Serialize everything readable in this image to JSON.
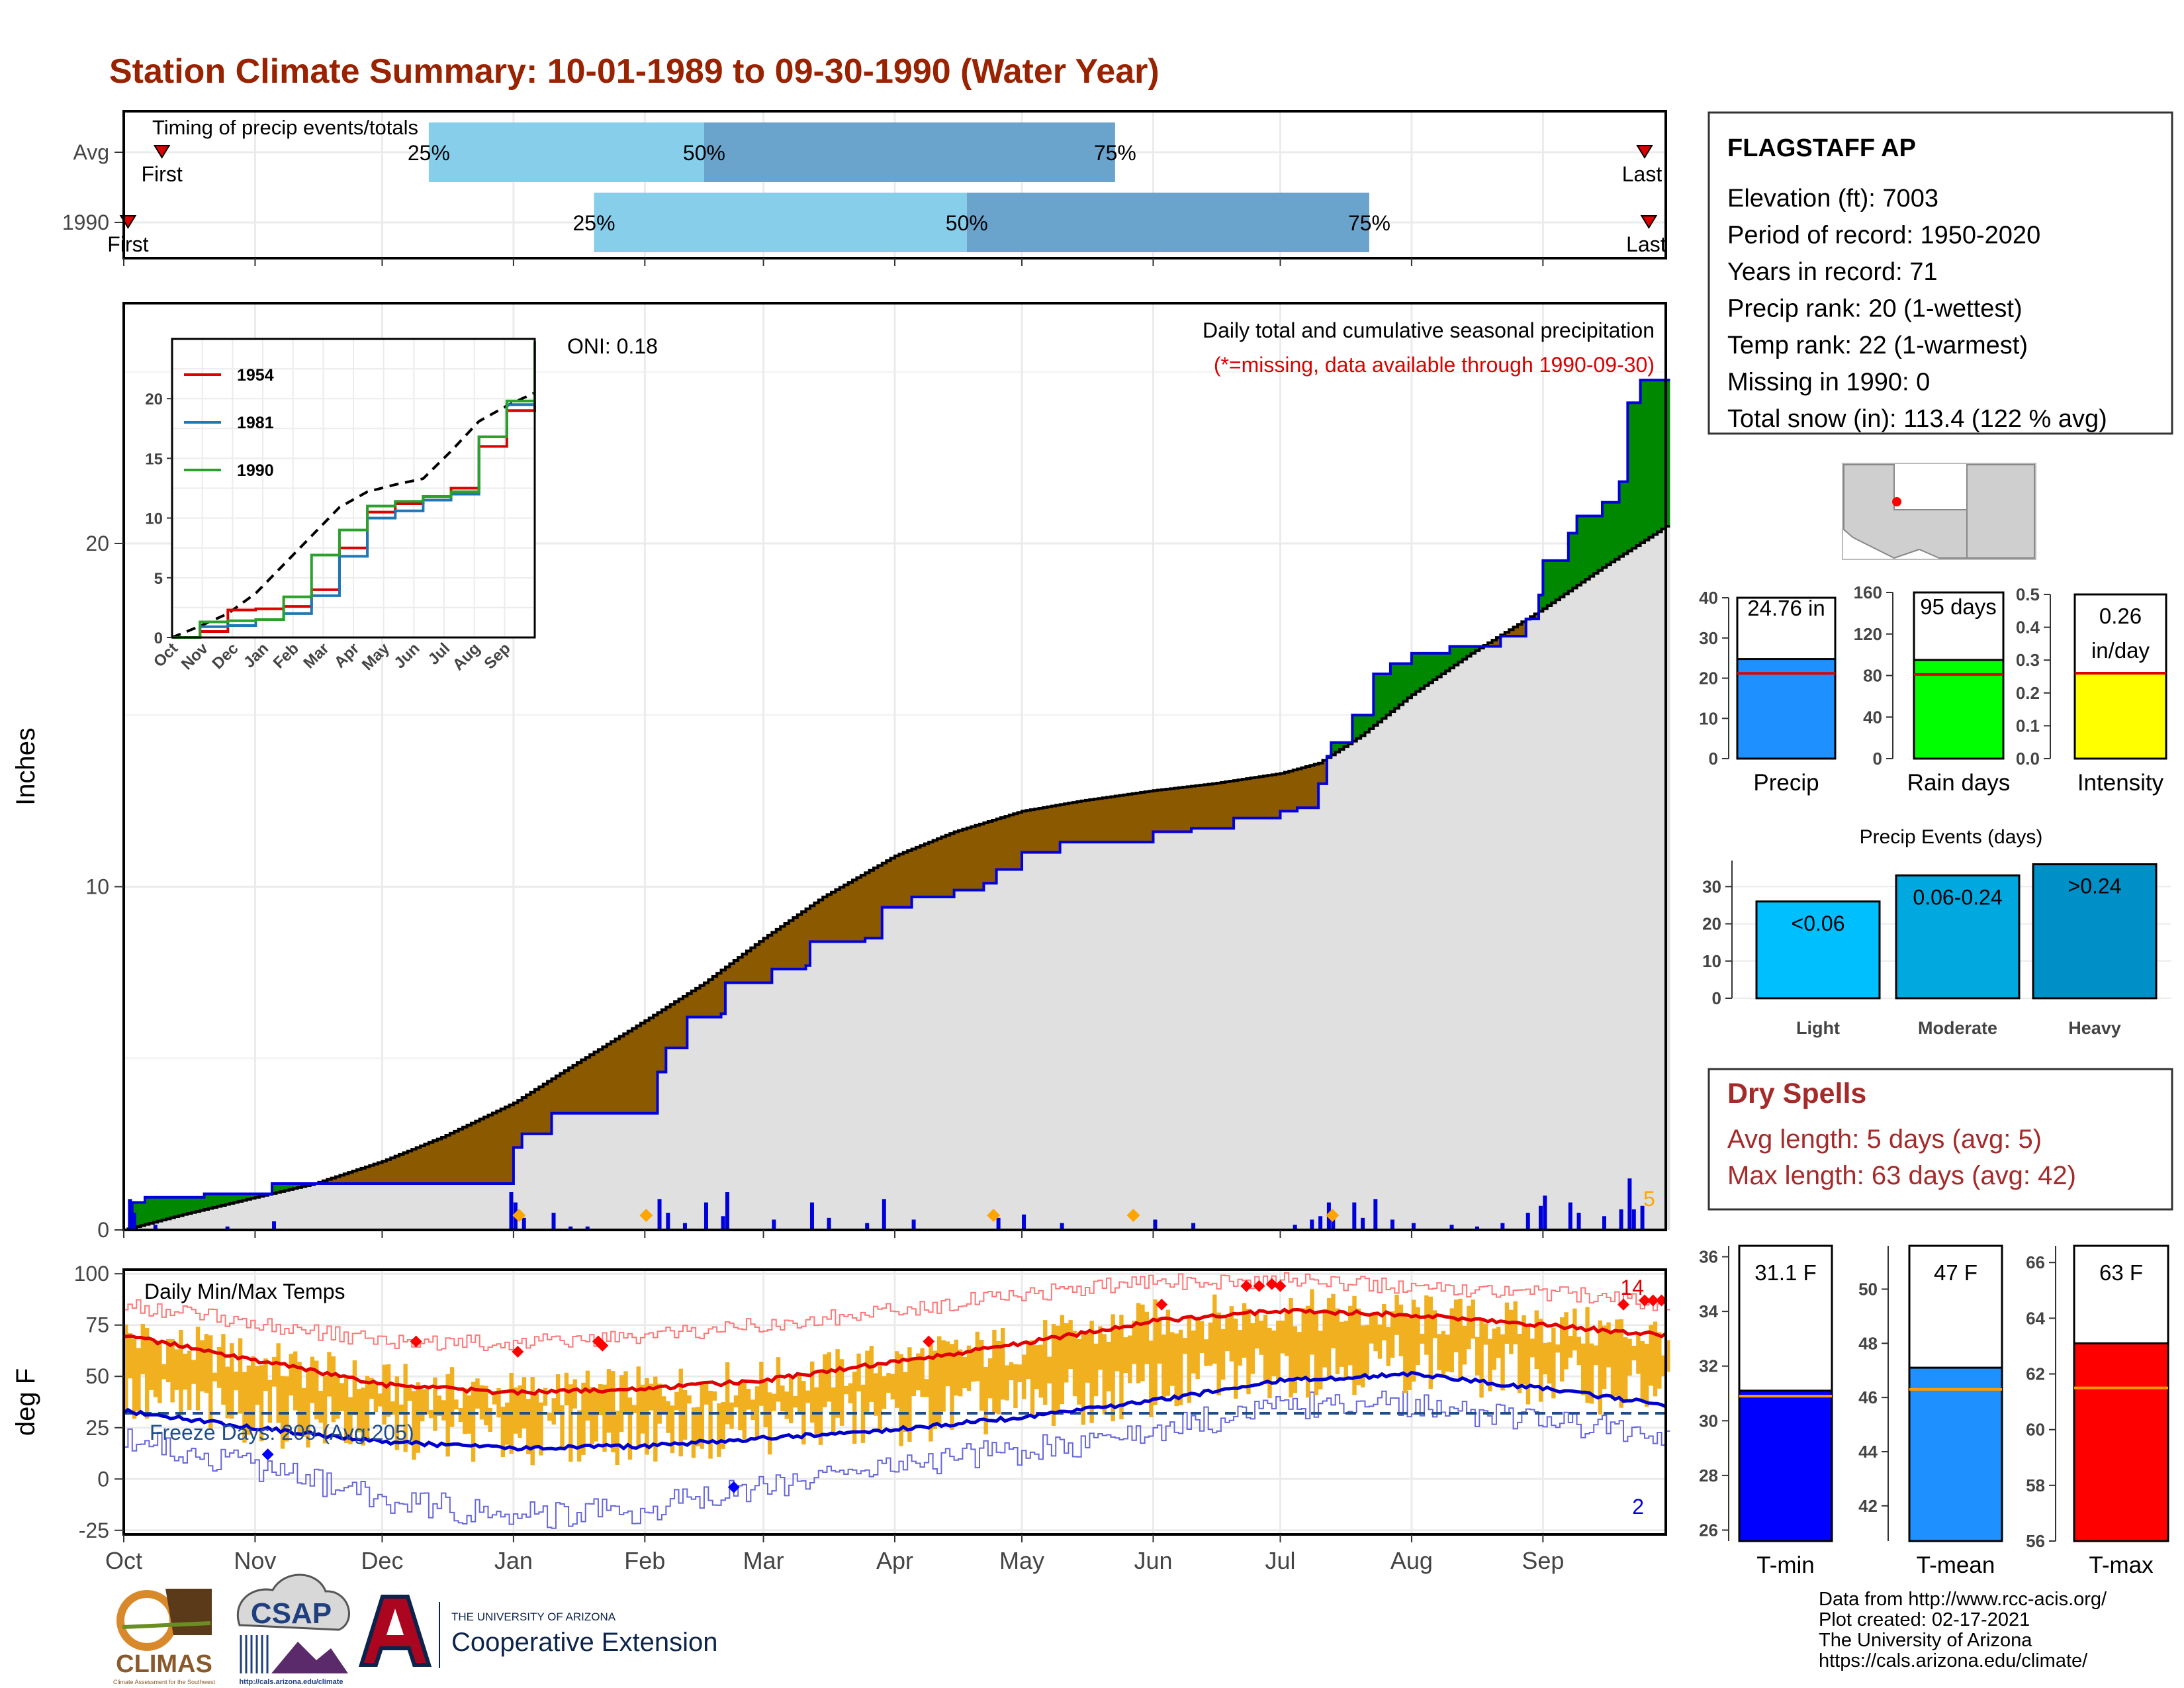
{
  "title": "Station Climate Summary: 10-01-1989 to 09-30-1990 (Water Year)",
  "timing": {
    "caption": "Timing of precip events/totals",
    "rows": [
      {
        "label": "Avg",
        "q25": "1989-12-12",
        "q50": "1990-02-15",
        "q75": "1990-05-23",
        "first": "1989-10-10",
        "last": "1990-09-25",
        "first_label": "First",
        "last_label": "Last"
      },
      {
        "label": "1990",
        "q25": "1990-01-20",
        "q50": "1990-04-18",
        "q75": "1990-07-22",
        "first": "1989-10-02",
        "last": "1990-09-26",
        "first_label": "First",
        "last_label": "Last"
      }
    ],
    "pct_labels": [
      "25%",
      "50%",
      "75%"
    ]
  },
  "precip_panel": {
    "ylabel": "Inches",
    "yticks": [
      0,
      10,
      20
    ],
    "ylim": [
      0,
      27
    ],
    "oni_text": "ONI: 0.18",
    "header": "Daily total and cumulative seasonal precipitation",
    "missing_note": "(*=missing, data available through 1990-09-30)",
    "corner_value": "5",
    "colors": {
      "above": "#008800",
      "below": "#8b5a00",
      "normal": "#e0e0e0",
      "observed": "#0000dd",
      "daily": "#0000dd",
      "snow": "#ffa500"
    },
    "normal": [
      [
        "1989-10-01",
        0.0
      ],
      [
        "1989-10-15",
        0.45
      ],
      [
        "1989-11-01",
        0.95
      ],
      [
        "1989-11-15",
        1.35
      ],
      [
        "1989-12-01",
        2.0
      ],
      [
        "1989-12-15",
        2.7
      ],
      [
        "1990-01-01",
        3.7
      ],
      [
        "1990-01-15",
        4.8
      ],
      [
        "1990-02-01",
        6.1
      ],
      [
        "1990-02-15",
        7.2
      ],
      [
        "1990-03-01",
        8.5
      ],
      [
        "1990-03-15",
        9.7
      ],
      [
        "1990-04-01",
        10.9
      ],
      [
        "1990-04-15",
        11.6
      ],
      [
        "1990-05-01",
        12.2
      ],
      [
        "1990-05-15",
        12.5
      ],
      [
        "1990-06-01",
        12.8
      ],
      [
        "1990-06-15",
        13.0
      ],
      [
        "1990-07-01",
        13.3
      ],
      [
        "1990-07-10",
        13.6
      ],
      [
        "1990-07-20",
        14.4
      ],
      [
        "1990-08-01",
        15.6
      ],
      [
        "1990-08-15",
        16.8
      ],
      [
        "1990-09-01",
        18.1
      ],
      [
        "1990-09-15",
        19.3
      ],
      [
        "1990-09-30",
        20.5
      ]
    ],
    "observed": [
      [
        "1989-10-01",
        0.0
      ],
      [
        "1989-10-03",
        0.8
      ],
      [
        "1989-10-06",
        0.95
      ],
      [
        "1989-10-20",
        1.05
      ],
      [
        "1989-11-05",
        1.35
      ],
      [
        "1989-12-31",
        1.35
      ],
      [
        "1990-01-01",
        2.4
      ],
      [
        "1990-01-03",
        2.8
      ],
      [
        "1990-01-10",
        3.4
      ],
      [
        "1990-02-01",
        3.4
      ],
      [
        "1990-02-04",
        4.6
      ],
      [
        "1990-02-06",
        5.3
      ],
      [
        "1990-02-11",
        6.2
      ],
      [
        "1990-02-19",
        6.3
      ],
      [
        "1990-02-20",
        7.2
      ],
      [
        "1990-03-01",
        7.2
      ],
      [
        "1990-03-03",
        7.6
      ],
      [
        "1990-03-11",
        7.7
      ],
      [
        "1990-03-12",
        8.4
      ],
      [
        "1990-03-25",
        8.5
      ],
      [
        "1990-03-29",
        9.4
      ],
      [
        "1990-04-05",
        9.7
      ],
      [
        "1990-04-15",
        9.9
      ],
      [
        "1990-04-22",
        10.1
      ],
      [
        "1990-04-25",
        10.5
      ],
      [
        "1990-05-01",
        11.0
      ],
      [
        "1990-05-10",
        11.3
      ],
      [
        "1990-05-25",
        11.3
      ],
      [
        "1990-06-01",
        11.6
      ],
      [
        "1990-06-10",
        11.7
      ],
      [
        "1990-06-20",
        12.0
      ],
      [
        "1990-07-01",
        12.2
      ],
      [
        "1990-07-05",
        12.3
      ],
      [
        "1990-07-10",
        13.0
      ],
      [
        "1990-07-12",
        13.8
      ],
      [
        "1990-07-13",
        14.2
      ],
      [
        "1990-07-18",
        15.0
      ],
      [
        "1990-07-23",
        16.2
      ],
      [
        "1990-07-27",
        16.5
      ],
      [
        "1990-08-01",
        16.8
      ],
      [
        "1990-08-10",
        17.0
      ],
      [
        "1990-08-22",
        17.3
      ],
      [
        "1990-08-28",
        17.8
      ],
      [
        "1990-08-31",
        18.5
      ],
      [
        "1990-09-01",
        19.5
      ],
      [
        "1990-09-07",
        20.3
      ],
      [
        "1990-09-09",
        20.8
      ],
      [
        "1990-09-15",
        21.2
      ],
      [
        "1990-09-19",
        21.8
      ],
      [
        "1990-09-21",
        24.1
      ],
      [
        "1990-09-24",
        24.76
      ],
      [
        "1990-09-30",
        24.76
      ]
    ],
    "daily": [
      [
        "1989-10-02",
        0.9
      ],
      [
        "1989-10-03",
        0.5
      ],
      [
        "1989-10-08",
        0.15
      ],
      [
        "1989-10-25",
        0.1
      ],
      [
        "1989-11-05",
        0.25
      ],
      [
        "1989-12-31",
        1.1
      ],
      [
        "1990-01-01",
        0.8
      ],
      [
        "1990-01-03",
        0.35
      ],
      [
        "1990-01-10",
        0.5
      ],
      [
        "1990-01-14",
        0.1
      ],
      [
        "1990-01-18",
        0.1
      ],
      [
        "1990-02-04",
        0.9
      ],
      [
        "1990-02-06",
        0.5
      ],
      [
        "1990-02-10",
        0.2
      ],
      [
        "1990-02-15",
        0.8
      ],
      [
        "1990-02-19",
        0.4
      ],
      [
        "1990-02-20",
        1.1
      ],
      [
        "1990-03-03",
        0.3
      ],
      [
        "1990-03-12",
        0.8
      ],
      [
        "1990-03-16",
        0.35
      ],
      [
        "1990-03-25",
        0.2
      ],
      [
        "1990-03-29",
        0.9
      ],
      [
        "1990-04-05",
        0.3
      ],
      [
        "1990-04-25",
        0.35
      ],
      [
        "1990-05-01",
        0.45
      ],
      [
        "1990-05-10",
        0.2
      ],
      [
        "1990-06-01",
        0.3
      ],
      [
        "1990-06-10",
        0.2
      ],
      [
        "1990-07-04",
        0.15
      ],
      [
        "1990-07-08",
        0.3
      ],
      [
        "1990-07-10",
        0.4
      ],
      [
        "1990-07-12",
        0.8
      ],
      [
        "1990-07-13",
        0.5
      ],
      [
        "1990-07-18",
        0.8
      ],
      [
        "1990-07-20",
        0.35
      ],
      [
        "1990-07-23",
        0.9
      ],
      [
        "1990-07-27",
        0.3
      ],
      [
        "1990-08-01",
        0.2
      ],
      [
        "1990-08-10",
        0.15
      ],
      [
        "1990-08-16",
        0.1
      ],
      [
        "1990-08-22",
        0.2
      ],
      [
        "1990-08-28",
        0.5
      ],
      [
        "1990-08-31",
        0.7
      ],
      [
        "1990-09-01",
        1.0
      ],
      [
        "1990-09-07",
        0.8
      ],
      [
        "1990-09-09",
        0.5
      ],
      [
        "1990-09-15",
        0.4
      ],
      [
        "1990-09-19",
        0.6
      ],
      [
        "1990-09-21",
        1.5
      ],
      [
        "1990-09-22",
        0.6
      ],
      [
        "1990-09-24",
        0.7
      ]
    ],
    "snow_markers": [
      "1990-01-02",
      "1990-02-01",
      "1990-04-24",
      "1990-05-27",
      "1990-07-13"
    ],
    "inset": {
      "xticks": [
        "Oct",
        "Nov",
        "Dec",
        "Jan",
        "Feb",
        "Mar",
        "Apr",
        "May",
        "Jun",
        "Jul",
        "Aug",
        "Sep"
      ],
      "yticks": [
        0,
        5,
        10,
        15,
        20
      ],
      "ylim": [
        0,
        25
      ],
      "series": [
        {
          "name": "1954",
          "color": "#dd0000",
          "values": [
            0,
            0.5,
            2.3,
            2.4,
            2.6,
            4.0,
            7.5,
            10.5,
            11.2,
            11.8,
            12.5,
            16.0,
            19.0,
            21.3
          ]
        },
        {
          "name": "1981",
          "color": "#1f77b4",
          "values": [
            0,
            0.9,
            1.0,
            1.5,
            2.0,
            3.5,
            6.8,
            10.0,
            10.6,
            11.5,
            12.0,
            16.8,
            19.5,
            20.9
          ]
        },
        {
          "name": "1990",
          "color": "#2ca02c",
          "values": [
            0,
            1.3,
            1.4,
            1.5,
            3.4,
            6.9,
            9.0,
            11.0,
            11.4,
            11.8,
            12.2,
            16.8,
            19.8,
            24.8
          ]
        }
      ],
      "avg_values": [
        0,
        0.95,
        2.0,
        3.7,
        6.1,
        8.5,
        10.9,
        12.2,
        12.8,
        13.3,
        15.6,
        18.1,
        19.4,
        20.5
      ]
    }
  },
  "temp_panel": {
    "ylabel": "deg F",
    "caption": "Daily Min/Max Temps",
    "yticks": [
      100,
      75,
      50,
      25,
      0,
      -25
    ],
    "ylim": [
      -27,
      102
    ],
    "freeze_line": 32,
    "freeze_text": "Freeze Days: 209 (Avg:205)",
    "record_high_count": "14",
    "record_low_count": "2",
    "colors": {
      "bar": "#f0b020",
      "norm_max": "#e00000",
      "norm_min": "#0000cc",
      "rec_max": "#ff7777",
      "rec_min": "#6666dd",
      "freeze": "#1f4e8c"
    },
    "norm_max": [
      [
        "1989-10-01",
        70
      ],
      [
        "1989-11-01",
        58
      ],
      [
        "1989-12-01",
        46
      ],
      [
        "1990-01-01",
        42
      ],
      [
        "1990-02-01",
        44
      ],
      [
        "1990-03-01",
        48
      ],
      [
        "1990-04-01",
        57
      ],
      [
        "1990-05-01",
        66
      ],
      [
        "1990-06-01",
        77
      ],
      [
        "1990-07-01",
        82
      ],
      [
        "1990-08-01",
        80
      ],
      [
        "1990-09-01",
        75
      ],
      [
        "1990-09-30",
        70
      ]
    ],
    "norm_min": [
      [
        "1989-10-01",
        33
      ],
      [
        "1989-11-01",
        25
      ],
      [
        "1989-12-01",
        18
      ],
      [
        "1990-01-01",
        15
      ],
      [
        "1990-02-01",
        16
      ],
      [
        "1990-03-01",
        20
      ],
      [
        "1990-04-01",
        24
      ],
      [
        "1990-05-01",
        30
      ],
      [
        "1990-06-01",
        38
      ],
      [
        "1990-07-01",
        48
      ],
      [
        "1990-08-01",
        51
      ],
      [
        "1990-09-01",
        44
      ],
      [
        "1990-09-30",
        36
      ]
    ],
    "rec_max": [
      [
        "1989-10-01",
        85
      ],
      [
        "1989-11-01",
        76
      ],
      [
        "1989-12-01",
        67
      ],
      [
        "1990-01-01",
        66
      ],
      [
        "1990-02-01",
        69
      ],
      [
        "1990-03-01",
        75
      ],
      [
        "1990-04-01",
        82
      ],
      [
        "1990-05-01",
        90
      ],
      [
        "1990-06-01",
        96
      ],
      [
        "1990-07-01",
        97
      ],
      [
        "1990-08-01",
        94
      ],
      [
        "1990-09-01",
        91
      ],
      [
        "1990-09-30",
        85
      ]
    ],
    "rec_min": [
      [
        "1989-10-01",
        20
      ],
      [
        "1989-11-01",
        6
      ],
      [
        "1989-12-01",
        -10
      ],
      [
        "1990-01-01",
        -18
      ],
      [
        "1990-02-01",
        -15
      ],
      [
        "1990-03-01",
        -3
      ],
      [
        "1990-04-01",
        6
      ],
      [
        "1990-05-01",
        14
      ],
      [
        "1990-06-01",
        23
      ],
      [
        "1990-07-01",
        36
      ],
      [
        "1990-08-01",
        37
      ],
      [
        "1990-09-01",
        27
      ],
      [
        "1990-09-30",
        22
      ]
    ],
    "high_markers": [
      [
        "1989-12-09",
        67
      ],
      [
        "1990-01-02",
        62
      ],
      [
        "1990-01-21",
        67
      ],
      [
        "1990-01-22",
        65
      ],
      [
        "1990-04-09",
        67
      ],
      [
        "1990-06-03",
        85
      ],
      [
        "1990-06-23",
        94
      ],
      [
        "1990-06-26",
        94
      ],
      [
        "1990-06-29",
        95
      ],
      [
        "1990-07-01",
        94
      ],
      [
        "1990-09-20",
        85
      ],
      [
        "1990-09-25",
        87
      ],
      [
        "1990-09-27",
        87
      ],
      [
        "1990-09-29",
        87
      ]
    ],
    "low_markers": [
      [
        "1989-11-04",
        12
      ],
      [
        "1990-02-22",
        -4
      ]
    ]
  },
  "xaxis": {
    "months": [
      "Oct",
      "Nov",
      "Dec",
      "Jan",
      "Feb",
      "Mar",
      "Apr",
      "May",
      "Jun",
      "Jul",
      "Aug",
      "Sep"
    ],
    "start": "1989-10-01",
    "end": "1990-09-30"
  },
  "station": {
    "name": "FLAGSTAFF AP",
    "lines": [
      "Elevation (ft): 7003",
      "Period of record: 1950-2020",
      "Years in record: 71",
      "Precip rank: 20 (1-wettest)",
      "Temp rank: 22 (1-warmest)",
      "Missing in 1990: 0",
      "Total snow (in): 113.4 (122 % avg)"
    ]
  },
  "summary_bars": [
    {
      "label": "Precip",
      "value": 24.76,
      "avg": 21.2,
      "text": "24.76 in",
      "yticks": [
        "0",
        "10",
        "20",
        "30",
        "40"
      ],
      "ymin": 0,
      "ymax": 40,
      "color": "#1e90ff"
    },
    {
      "label": "Rain days",
      "value": 95,
      "avg": 81,
      "text": "95 days",
      "yticks": [
        "0",
        "40",
        "80",
        "120",
        "160"
      ],
      "ymin": 0,
      "ymax": 160,
      "color": "#00ff00"
    },
    {
      "label": "Intensity",
      "value": 0.26,
      "avg": 0.26,
      "text": "0.26 in/day",
      "yticks": [
        "0.0",
        "0.1",
        "0.2",
        "0.3",
        "0.4",
        "0.5"
      ],
      "ymin": 0,
      "ymax": 0.5,
      "color": "#ffff00"
    }
  ],
  "events": {
    "title": "Precip Events (days)",
    "yticks": [
      "0",
      "10",
      "20",
      "30"
    ],
    "ymax": 37,
    "bars": [
      {
        "label": "Light",
        "value": 26,
        "text": "<0.06",
        "color": "#00bfff"
      },
      {
        "label": "Moderate",
        "value": 33,
        "text": "0.06-0.24",
        "color": "#00a8e0"
      },
      {
        "label": "Heavy",
        "value": 36,
        "text": ">0.24",
        "color": "#0090c8"
      }
    ]
  },
  "dry_spells": {
    "title": "Dry Spells",
    "lines": [
      "Avg length: 5 days (avg: 5)",
      "Max length: 63 days (avg: 42)"
    ],
    "color": "#a52a2a"
  },
  "temp_bars": [
    {
      "label": "T-min",
      "value": 31.1,
      "avg": 30.9,
      "text": "31.1 F",
      "yticks": [
        "26",
        "28",
        "30",
        "32",
        "34",
        "36"
      ],
      "ymin": 25.6,
      "ymax": 36.4,
      "color": "#0000ff"
    },
    {
      "label": "T-mean",
      "value": 47.1,
      "avg": 46.3,
      "text": "47 F",
      "yticks": [
        "42",
        "44",
        "46",
        "48",
        "50"
      ],
      "ymin": 40.7,
      "ymax": 51.6,
      "color": "#1e90ff"
    },
    {
      "label": "T-max",
      "value": 63.1,
      "avg": 61.5,
      "text": "63 F",
      "yticks": [
        "56",
        "58",
        "60",
        "62",
        "64",
        "66"
      ],
      "ymin": 56,
      "ymax": 66.6,
      "color": "#ff0000"
    }
  ],
  "footer": {
    "lines": [
      "Data from http://www.rcc-acis.org/",
      "Plot created: 02-17-2021",
      "The University of Arizona",
      "https://cals.arizona.edu/climate/"
    ],
    "logos": {
      "climas": "CLIMAS",
      "climas_sub": "Climate Assessment for the Southwest",
      "csap": "CSAP",
      "csap_url": "http://cals.arizona.edu/climate",
      "ua_top": "THE UNIVERSITY OF ARIZONA",
      "ua_name": "Cooperative Extension"
    }
  }
}
